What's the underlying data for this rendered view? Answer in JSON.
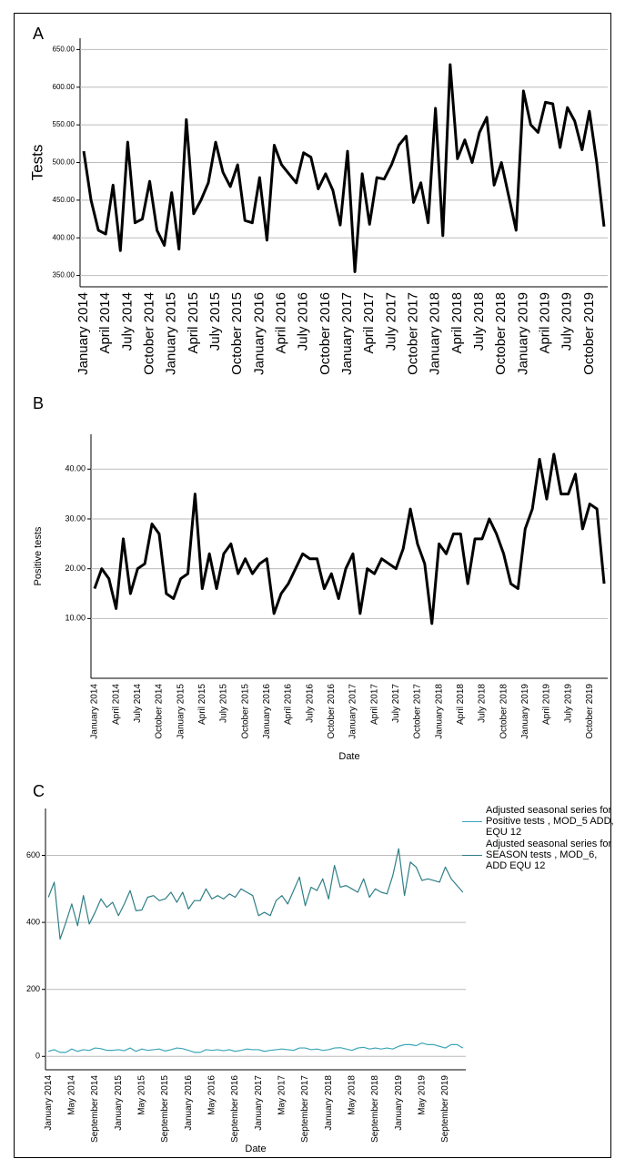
{
  "chart_data": [
    {
      "type": "line",
      "label": "A",
      "y_label": "Tests",
      "color": "#000000",
      "categories": [
        "January 2014",
        null,
        null,
        "April 2014",
        null,
        null,
        "July 2014",
        null,
        null,
        "October 2014",
        null,
        null,
        "January 2015",
        null,
        null,
        "April 2015",
        null,
        null,
        "July 2015",
        null,
        null,
        "October 2015",
        null,
        null,
        "January 2016",
        null,
        null,
        "April 2016",
        null,
        null,
        "July 2016",
        null,
        null,
        "October 2016",
        null,
        null,
        "January 2017",
        null,
        null,
        "April 2017",
        null,
        null,
        "July 2017",
        null,
        null,
        "October 2017",
        null,
        null,
        "January 2018",
        null,
        null,
        "April 2018",
        null,
        null,
        "July 2018",
        null,
        null,
        "October 2018",
        null,
        null,
        "January 2019",
        null,
        null,
        "April 2019",
        null,
        null,
        "July 2019",
        null,
        null,
        "October 2019",
        null,
        null
      ],
      "values": [
        515,
        450,
        410,
        405,
        470,
        383,
        527,
        420,
        425,
        475,
        410,
        390,
        460,
        385,
        557,
        432,
        450,
        473,
        527,
        487,
        468,
        497,
        423,
        420,
        480,
        397,
        523,
        497,
        485,
        473,
        513,
        507,
        465,
        485,
        463,
        417,
        515,
        355,
        485,
        418,
        480,
        478,
        497,
        523,
        535,
        447,
        473,
        420,
        572,
        403,
        630,
        505,
        530,
        500,
        540,
        560,
        470,
        500,
        455,
        410,
        595,
        550,
        540,
        580,
        578,
        520,
        573,
        555,
        517,
        568,
        500,
        415
      ],
      "ylim": [
        335,
        665
      ],
      "yticks": [
        {
          "value": 350,
          "label": "350.00"
        },
        {
          "value": 400,
          "label": "400.00"
        },
        {
          "value": 450,
          "label": "450.00"
        },
        {
          "value": 500,
          "label": "500.00"
        },
        {
          "value": 550,
          "label": "550.00"
        },
        {
          "value": 600,
          "label": "600.00"
        },
        {
          "value": 650,
          "label": "650.00"
        }
      ],
      "grid": true
    },
    {
      "type": "line",
      "label": "B",
      "y_label": "Positive tests",
      "x_label": "Date",
      "color": "#000000",
      "categories": [
        "January 2014",
        null,
        null,
        "April 2014",
        null,
        null,
        "July 2014",
        null,
        null,
        "October 2014",
        null,
        null,
        "January 2015",
        null,
        null,
        "April 2015",
        null,
        null,
        "July 2015",
        null,
        null,
        "October 2015",
        null,
        null,
        "January 2016",
        null,
        null,
        "April 2016",
        null,
        null,
        "July 2016",
        null,
        null,
        "October 2016",
        null,
        null,
        "January 2017",
        null,
        null,
        "April 2017",
        null,
        null,
        "July 2017",
        null,
        null,
        "October 2017",
        null,
        null,
        "January 2018",
        null,
        null,
        "April 2018",
        null,
        null,
        "July 2018",
        null,
        null,
        "October 2018",
        null,
        null,
        "January 2019",
        null,
        null,
        "April 2019",
        null,
        null,
        "July 2019",
        null,
        null,
        "October 2019",
        null,
        null
      ],
      "values": [
        16,
        20,
        18,
        12,
        26,
        15,
        20,
        21,
        29,
        27,
        15,
        14,
        18,
        19,
        35,
        16,
        23,
        16,
        23,
        25,
        19,
        22,
        19,
        21,
        22,
        11,
        15,
        17,
        20,
        23,
        22,
        22,
        16,
        19,
        14,
        20,
        23,
        11,
        20,
        19,
        22,
        21,
        20,
        24,
        32,
        25,
        21,
        9,
        25,
        23,
        27,
        27,
        17,
        26,
        26,
        30,
        27,
        23,
        17,
        16,
        28,
        32,
        42,
        34,
        43,
        35,
        35,
        39,
        28,
        33,
        32,
        17
      ],
      "ylim": [
        -2,
        47
      ],
      "yticks": [
        {
          "value": 10,
          "label": "10.00"
        },
        {
          "value": 20,
          "label": "20.00"
        },
        {
          "value": 30,
          "label": "30.00"
        },
        {
          "value": 40,
          "label": "40.00"
        }
      ],
      "grid": true
    },
    {
      "type": "line",
      "label": "C",
      "x_label": "Date",
      "categories": [
        "January 2014",
        null,
        null,
        null,
        "May 2014",
        null,
        null,
        null,
        "September 2014",
        null,
        null,
        null,
        "January 2015",
        null,
        null,
        null,
        "May 2015",
        null,
        null,
        null,
        "September 2015",
        null,
        null,
        null,
        "January 2016",
        null,
        null,
        null,
        "May 2016",
        null,
        null,
        null,
        "September 2016",
        null,
        null,
        null,
        "January 2017",
        null,
        null,
        null,
        "May 2017",
        null,
        null,
        null,
        "September 2017",
        null,
        null,
        null,
        "January 2018",
        null,
        null,
        null,
        "May 2018",
        null,
        null,
        null,
        "September 2018",
        null,
        null,
        null,
        "January 2019",
        null,
        null,
        null,
        "May 2019",
        null,
        null,
        null,
        "September 2019",
        null,
        null,
        null
      ],
      "series": [
        {
          "name": "Adjusted seasonal series for Positive tests , MOD_5 ADD, EQU 12",
          "color": "#3ba6b8",
          "values": [
            15,
            20,
            12,
            12,
            22,
            15,
            20,
            18,
            25,
            23,
            18,
            18,
            20,
            17,
            25,
            15,
            22,
            18,
            20,
            22,
            16,
            20,
            25,
            23,
            18,
            12,
            12,
            20,
            18,
            20,
            17,
            20,
            15,
            18,
            22,
            20,
            20,
            15,
            18,
            20,
            22,
            20,
            18,
            25,
            25,
            20,
            22,
            18,
            20,
            25,
            26,
            22,
            18,
            25,
            27,
            22,
            25,
            22,
            25,
            22,
            30,
            35,
            35,
            32,
            40,
            35,
            35,
            30,
            25,
            35,
            35,
            25
          ]
        },
        {
          "name": "Adjusted seasonal series for SEASON tests , MOD_6, ADD EQU 12",
          "color": "#2e7f87",
          "values": [
            475,
            520,
            350,
            400,
            455,
            390,
            480,
            395,
            430,
            470,
            445,
            460,
            420,
            455,
            495,
            435,
            437,
            475,
            480,
            465,
            470,
            490,
            460,
            490,
            440,
            465,
            465,
            500,
            470,
            480,
            470,
            485,
            475,
            500,
            490,
            480,
            420,
            430,
            420,
            465,
            480,
            455,
            495,
            535,
            450,
            505,
            495,
            530,
            470,
            570,
            505,
            510,
            500,
            490,
            530,
            475,
            500,
            490,
            485,
            540,
            620,
            480,
            580,
            565,
            525,
            530,
            525,
            520,
            565,
            530,
            510,
            490
          ]
        }
      ],
      "ylim": [
        -40,
        740
      ],
      "yticks": [
        0,
        200,
        400,
        600
      ],
      "grid": true
    }
  ]
}
